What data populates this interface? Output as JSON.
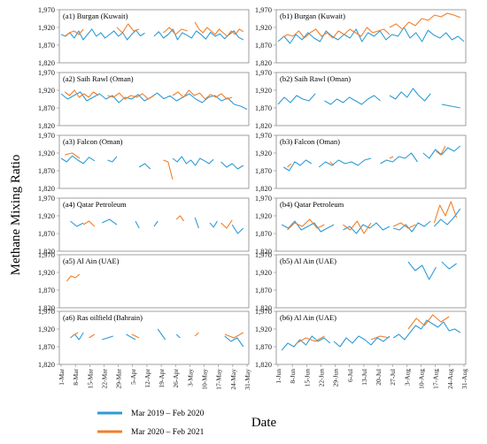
{
  "figure": {
    "ylabel": "Methane Mixing Ratio",
    "xlabel": "Date"
  },
  "legend": [
    {
      "label": "Mar 2019 – Feb 2020",
      "color": "#2e9bd6"
    },
    {
      "label": "Mar 2020 – Feb 2021",
      "color": "#f07f2b"
    }
  ],
  "chart_data": [
    {
      "type": "line",
      "columns": [
        "left",
        "right"
      ],
      "y_ticks": [
        "1,970",
        "1,920",
        "1,870",
        "1,820"
      ],
      "ylim": [
        1820,
        1970
      ],
      "x_ticks_left": [
        "1-Mar",
        "8-Mar",
        "15-Mar",
        "22-Mar",
        "29-Mar",
        "5-Apr",
        "12-Apr",
        "19-Apr",
        "26-Apr",
        "3-May",
        "10-May",
        "17-May",
        "24-May",
        "31-May"
      ],
      "x_ticks_right": [
        "1-Jun",
        "8-Jun",
        "15-Jun",
        "22-Jun",
        "29-Jun",
        "6-Jul",
        "13-Jul",
        "20-Jul",
        "27-Jul",
        "3-Aug",
        "10-Aug",
        "17-Aug",
        "24-Aug",
        "31-Aug"
      ],
      "panels": [
        {
          "col": 0,
          "row": 0,
          "title": "(a1) Burgan (Kuwait)",
          "s1": [
            [
              0,
              0.45,
              [
                1900,
                1895,
                1905,
                1890,
                1910,
                1885,
                1900,
                1915,
                1895,
                1905,
                1890,
                1900,
                1910,
                1895,
                1905,
                1885,
                1900,
                1912,
                1896,
                1904
              ]
            ],
            [
              0.5,
              0.98,
              [
                1895,
                1908,
                1890,
                1900,
                1915,
                1885,
                1905,
                1898,
                1890,
                1910,
                1900,
                1887,
                1906,
                1895,
                1902,
                1888,
                1900,
                1910,
                1892,
                1885
              ]
            ]
          ],
          "s2": [
            [
              0.02,
              0.12,
              [
                1895,
                1905,
                1910,
                1900,
                1915
              ]
            ],
            [
              0.3,
              0.42,
              [
                1920,
                1905,
                1930,
                1910,
                1915
              ]
            ],
            [
              0.55,
              0.68,
              [
                1905,
                1920,
                1900,
                1915,
                1910
              ]
            ],
            [
              0.72,
              0.98,
              [
                1935,
                1915,
                1905,
                1920,
                1910,
                1900,
                1915,
                1905,
                1895,
                1910,
                1900,
                1915,
                1908
              ]
            ]
          ]
        },
        {
          "col": 0,
          "row": 1,
          "title": "(a2) Saih Rawl (Oman)",
          "s1": [
            [
              0,
              1,
              [
                1910,
                1895,
                1905,
                1915,
                1890,
                1900,
                1910,
                1895,
                1905,
                1885,
                1900,
                1895,
                1908,
                1890,
                1900,
                1912,
                1896,
                1904,
                1890,
                1900,
                1910,
                1895,
                1885,
                1900,
                1905,
                1890,
                1898,
                1880,
                1875,
                1866
              ]
            ]
          ],
          "s2": [
            [
              0.02,
              0.2,
              [
                1915,
                1905,
                1920,
                1900,
                1910,
                1900,
                1915,
                1905
              ]
            ],
            [
              0.25,
              0.5,
              [
                1905,
                1900,
                1912,
                1895,
                1905,
                1900,
                1910,
                1895,
                1905
              ]
            ],
            [
              0.6,
              0.92,
              [
                1905,
                1915,
                1900,
                1920,
                1905,
                1912,
                1895,
                1908,
                1900,
                1910,
                1895,
                1900
              ]
            ]
          ]
        },
        {
          "col": 0,
          "row": 2,
          "title": "(a3) Falcon (Oman)",
          "s1": [
            [
              0,
              0.18,
              [
                1905,
                1895,
                1912,
                1900,
                1890,
                1908,
                1898
              ]
            ],
            [
              0.25,
              0.3,
              [
                1900,
                1895,
                1910
              ]
            ],
            [
              0.42,
              0.48,
              [
                1880,
                1890,
                1875
              ]
            ],
            [
              0.6,
              0.82,
              [
                1905,
                1895,
                1910,
                1890,
                1900,
                1885,
                1905,
                1898,
                1890,
                1902
              ]
            ],
            [
              0.86,
              0.98,
              [
                1895,
                1880,
                1890,
                1875,
                1885
              ]
            ]
          ],
          "s2": [
            [
              0.02,
              0.1,
              [
                1915,
                1920,
                1905
              ]
            ],
            [
              0.55,
              0.6,
              [
                1900,
                1895,
                1845
              ]
            ]
          ]
        },
        {
          "col": 0,
          "row": 3,
          "title": "(a4) Qatar Petroleum",
          "s1": [
            [
              0.05,
              0.12,
              [
                1905,
                1890,
                1900
              ]
            ],
            [
              0.22,
              0.3,
              [
                1900,
                1910,
                1895
              ]
            ],
            [
              0.4,
              0.42,
              [
                1905,
                1885
              ]
            ],
            [
              0.5,
              0.52,
              [
                1890,
                1905
              ]
            ],
            [
              0.72,
              0.74,
              [
                1915,
                1885
              ]
            ],
            [
              0.8,
              0.84,
              [
                1900,
                1888,
                1905
              ]
            ],
            [
              0.92,
              0.98,
              [
                1895,
                1870,
                1885
              ]
            ]
          ],
          "s2": [
            [
              0.12,
              0.18,
              [
                1895,
                1905,
                1890
              ]
            ],
            [
              0.62,
              0.66,
              [
                1910,
                1920,
                1905
              ]
            ],
            [
              0.86,
              0.92,
              [
                1900,
                1885,
                1908
              ]
            ]
          ]
        },
        {
          "col": 0,
          "row": 4,
          "title": "(a5) Al Ain (UAE)",
          "s1": [],
          "s2": [
            [
              0.03,
              0.1,
              [
                1895,
                1910,
                1905,
                1915
              ]
            ]
          ]
        },
        {
          "col": 0,
          "row": 5,
          "title": "(a6) Ras oilfield (Bahrain)",
          "s1": [
            [
              0.05,
              0.12,
              [
                1895,
                1905,
                1890,
                1910
              ]
            ],
            [
              0.22,
              0.28,
              [
                1890,
                1900
              ]
            ],
            [
              0.35,
              0.4,
              [
                1905,
                1890
              ]
            ],
            [
              0.52,
              0.56,
              [
                1920,
                1890
              ]
            ],
            [
              0.62,
              0.64,
              [
                1905,
                1895
              ]
            ],
            [
              0.88,
              0.98,
              [
                1900,
                1885,
                1895,
                1870
              ]
            ]
          ],
          "s2": [
            [
              0.06,
              0.09,
              [
                1900,
                1910
              ]
            ],
            [
              0.15,
              0.18,
              [
                1895,
                1905
              ]
            ],
            [
              0.38,
              0.42,
              [
                1905,
                1895
              ]
            ],
            [
              0.72,
              0.74,
              [
                1900,
                1910
              ]
            ],
            [
              0.88,
              0.98,
              [
                1905,
                1895,
                1910
              ]
            ]
          ]
        },
        {
          "col": 1,
          "row": 0,
          "title": "(b1) Burgan (Kuwait)",
          "s1": [
            [
              0,
              1,
              [
                1880,
                1895,
                1875,
                1900,
                1885,
                1905,
                1890,
                1880,
                1910,
                1895,
                1885,
                1900,
                1890,
                1915,
                1880,
                1905,
                1895,
                1910,
                1885,
                1900,
                1895,
                1920,
                1890,
                1905,
                1880,
                1912,
                1898,
                1890,
                1905,
                1885,
                1895,
                1880
              ]
            ]
          ],
          "s2": [
            [
              0.02,
              0.6,
              [
                1890,
                1900,
                1895,
                1910,
                1890,
                1905,
                1915,
                1895,
                1905,
                1890,
                1910,
                1900,
                1915,
                1905,
                1895,
                1920,
                1905,
                1910,
                1915,
                1900
              ]
            ],
            [
              0.6,
              0.98,
              [
                1920,
                1930,
                1915,
                1935,
                1925,
                1945,
                1940,
                1955,
                1950,
                1960,
                1955,
                1948
              ]
            ]
          ]
        },
        {
          "col": 1,
          "row": 1,
          "title": "(b2) Saih Rawl (Oman)",
          "s1": [
            [
              0,
              0.2,
              [
                1880,
                1900,
                1885,
                1905,
                1895,
                1890,
                1910
              ]
            ],
            [
              0.25,
              0.55,
              [
                1890,
                1880,
                1895,
                1885,
                1900,
                1890,
                1880,
                1895,
                1905,
                1890
              ]
            ],
            [
              0.6,
              0.82,
              [
                1905,
                1895,
                1915,
                1900,
                1925,
                1905,
                1890,
                1910
              ]
            ],
            [
              0.88,
              0.98,
              [
                1880,
                1875,
                1870
              ]
            ]
          ]
        },
        {
          "col": 1,
          "row": 2,
          "title": "(b3) Falcon (Oman)",
          "s1": [
            [
              0.03,
              0.18,
              [
                1880,
                1870,
                1895,
                1885,
                1900,
                1890
              ]
            ],
            [
              0.22,
              0.5,
              [
                1880,
                1895,
                1885,
                1900,
                1890,
                1895,
                1885,
                1900,
                1905
              ]
            ],
            [
              0.55,
              0.75,
              [
                1890,
                1900,
                1895,
                1910,
                1905,
                1920,
                1895
              ]
            ],
            [
              0.78,
              0.98,
              [
                1920,
                1905,
                1930,
                1915,
                1935,
                1925,
                1940
              ]
            ]
          ],
          "s2": [
            [
              0.05,
              0.07,
              [
                1880,
                1890
              ]
            ],
            [
              0.28,
              0.3,
              [
                1895,
                1885
              ]
            ],
            [
              0.6,
              0.62,
              [
                1905,
                1910
              ]
            ],
            [
              0.85,
              0.9,
              [
                1925,
                1915,
                1940
              ]
            ]
          ]
        },
        {
          "col": 1,
          "row": 3,
          "title": "(b4) Qatar Petroleum",
          "s1": [
            [
              0.02,
              0.3,
              [
                1895,
                1885,
                1905,
                1880,
                1890,
                1900,
                1875,
                1885,
                1895
              ]
            ],
            [
              0.35,
              0.6,
              [
                1880,
                1890,
                1870,
                1895,
                1885,
                1900,
                1880,
                1890
              ]
            ],
            [
              0.62,
              0.82,
              [
                1885,
                1880,
                1895,
                1875,
                1900,
                1890,
                1905
              ]
            ],
            [
              0.84,
              0.98,
              [
                1890,
                1910,
                1895,
                1915,
                1940
              ]
            ]
          ],
          "s2": [
            [
              0.05,
              0.25,
              [
                1880,
                1900,
                1890,
                1910,
                1885,
                1895
              ]
            ],
            [
              0.35,
              0.5,
              [
                1895,
                1880,
                1905,
                1870,
                1900
              ]
            ],
            [
              0.62,
              0.74,
              [
                1890,
                1900,
                1885,
                1895
              ]
            ],
            [
              0.84,
              0.96,
              [
                1900,
                1950,
                1920,
                1960,
                1915
              ]
            ]
          ]
        },
        {
          "col": 1,
          "row": 4,
          "title": "(b5) Al Ain (UAE)",
          "s1": [
            [
              0.7,
              0.85,
              [
                1950,
                1925,
                1940,
                1900,
                1935
              ]
            ],
            [
              0.88,
              0.96,
              [
                1950,
                1930,
                1945
              ]
            ]
          ]
        },
        {
          "col": 1,
          "row": 5,
          "title": "(b6) Al Ain (UAE)",
          "s1": [
            [
              0.02,
              0.28,
              [
                1860,
                1880,
                1870,
                1890,
                1875,
                1900,
                1885,
                1895,
                1880
              ]
            ],
            [
              0.3,
              0.6,
              [
                1885,
                1870,
                1895,
                1880,
                1900,
                1890,
                1875,
                1895,
                1885,
                1900
              ]
            ],
            [
              0.62,
              0.98,
              [
                1895,
                1905,
                1890,
                1910,
                1930,
                1920,
                1945,
                1935,
                1925,
                1940,
                1915,
                1920,
                1910
              ]
            ]
          ],
          "s2": [
            [
              0.1,
              0.25,
              [
                1880,
                1895,
                1885,
                1900
              ]
            ],
            [
              0.5,
              0.6,
              [
                1890,
                1900,
                1895
              ]
            ],
            [
              0.7,
              0.92,
              [
                1920,
                1950,
                1930,
                1960,
                1940,
                1955
              ]
            ]
          ]
        }
      ]
    }
  ]
}
